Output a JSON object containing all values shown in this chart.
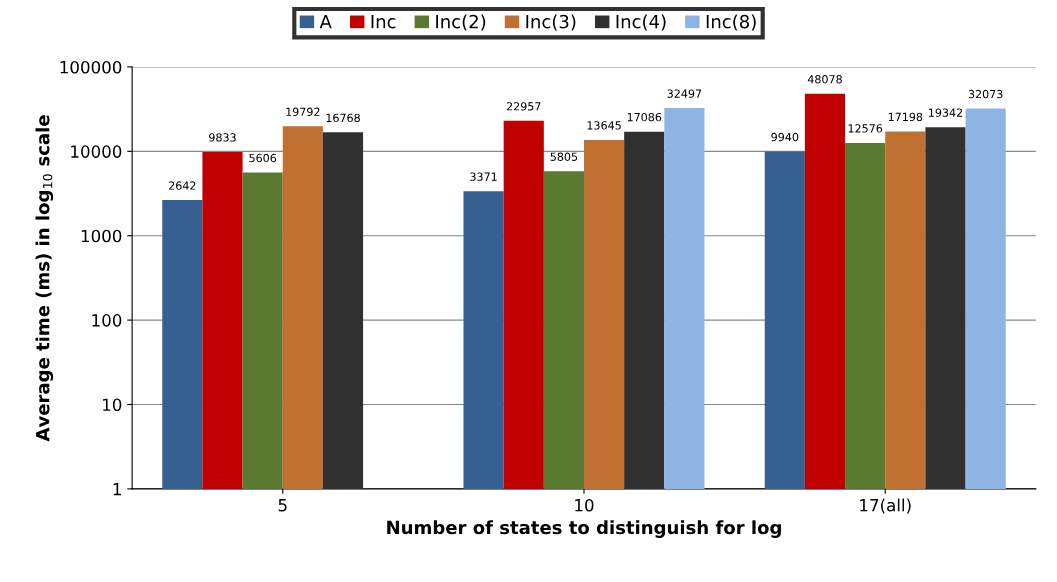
{
  "chart_data": {
    "type": "bar",
    "categories": [
      "5",
      "10",
      "17(all)"
    ],
    "series": [
      {
        "name": "A",
        "color": "#376092",
        "values": [
          2642,
          3371,
          9940
        ]
      },
      {
        "name": "Inc",
        "color": "#c00000",
        "values": [
          9833,
          22957,
          48078
        ]
      },
      {
        "name": "Inc(2)",
        "color": "#5a7a32",
        "values": [
          5606,
          5805,
          12576
        ]
      },
      {
        "name": "Inc(3)",
        "color": "#c07030",
        "values": [
          19792,
          13645,
          17198
        ]
      },
      {
        "name": "Inc(4)",
        "color": "#303030",
        "values": [
          16768,
          17086,
          19342
        ]
      },
      {
        "name": "Inc(8)",
        "color": "#8eb4e3",
        "values": [
          null,
          32497,
          32073
        ]
      }
    ],
    "data_labels": true,
    "log": true,
    "ylim": [
      1,
      100000
    ],
    "yticks": [
      1,
      10,
      100,
      1000,
      10000,
      100000
    ],
    "ylabel": "Average time (ms) in log$_{10}$ scale",
    "xlabel": "Number of states to distinguish for log",
    "grid": "y",
    "legend": "top"
  }
}
